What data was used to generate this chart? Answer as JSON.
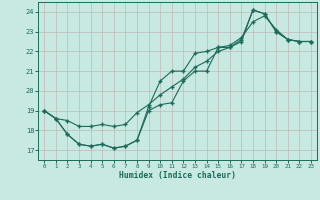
{
  "xlabel": "Humidex (Indice chaleur)",
  "background_color": "#c8e8e2",
  "grid_color": "#c0b8b8",
  "line_color": "#1a6b5a",
  "xlim": [
    -0.5,
    23.5
  ],
  "ylim": [
    16.5,
    24.5
  ],
  "xticks": [
    0,
    1,
    2,
    3,
    4,
    5,
    6,
    7,
    8,
    9,
    10,
    11,
    12,
    13,
    14,
    15,
    16,
    17,
    18,
    19,
    20,
    21,
    22,
    23
  ],
  "yticks": [
    17,
    18,
    19,
    20,
    21,
    22,
    23,
    24
  ],
  "line1_x": [
    0,
    1,
    2,
    3,
    4,
    5,
    6,
    7,
    8,
    9,
    10,
    11,
    12,
    13,
    14,
    15,
    16,
    17,
    18,
    19,
    20,
    21,
    22,
    23
  ],
  "line1_y": [
    19.0,
    18.6,
    17.8,
    17.3,
    17.2,
    17.3,
    17.1,
    17.2,
    17.5,
    19.0,
    19.3,
    19.4,
    20.5,
    21.0,
    21.0,
    22.2,
    22.2,
    22.5,
    24.1,
    23.9,
    23.0,
    22.6,
    22.5,
    22.5
  ],
  "line2_x": [
    0,
    1,
    2,
    3,
    4,
    5,
    6,
    7,
    8,
    9,
    10,
    11,
    12,
    13,
    14,
    15,
    16,
    17,
    18,
    19,
    20,
    21,
    22,
    23
  ],
  "line2_y": [
    19.0,
    18.6,
    17.8,
    17.3,
    17.2,
    17.3,
    17.1,
    17.2,
    17.5,
    19.2,
    20.5,
    21.0,
    21.0,
    21.9,
    22.0,
    22.2,
    22.3,
    22.7,
    23.5,
    23.8,
    23.1,
    22.6,
    22.5,
    22.5
  ],
  "line3_x": [
    0,
    1,
    2,
    3,
    4,
    5,
    6,
    7,
    8,
    9,
    10,
    11,
    12,
    13,
    14,
    15,
    16,
    17,
    18,
    19,
    20,
    21,
    22,
    23
  ],
  "line3_y": [
    19.0,
    18.6,
    18.5,
    18.2,
    18.2,
    18.3,
    18.2,
    18.3,
    18.9,
    19.3,
    19.8,
    20.2,
    20.6,
    21.2,
    21.5,
    22.0,
    22.2,
    22.6,
    24.1,
    23.9,
    23.0,
    22.6,
    22.5,
    22.5
  ]
}
